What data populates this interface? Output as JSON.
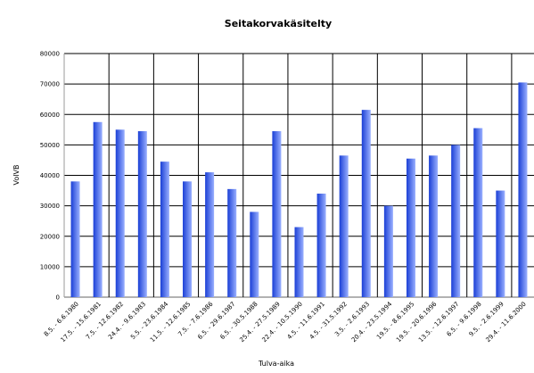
{
  "chart_data": {
    "type": "bar",
    "title": "Seitakorvakäsitelty",
    "xlabel": "Tulva-aika",
    "ylabel": "VolVB",
    "ylim": [
      0,
      80000
    ],
    "yticks": [
      0,
      10000,
      20000,
      30000,
      40000,
      50000,
      60000,
      70000,
      80000
    ],
    "grid": true,
    "categories": [
      "8.5. - 6.6.1980",
      "17.5. - 15.6.1981",
      "7.5. - 12.6.1982",
      "24.4. - 9.6.1983",
      "5.5. - 23.6.1984",
      "11.5. - 12.6.1985",
      "7.5. - 7.6.1986",
      "6.5. - 29.6.1987",
      "6.5. - 30.5.1988",
      "25.4. - 27.5.1989",
      "22.4. - 10.5.1990",
      "4.5. - 11.6.1991",
      "4.5. - 31.5.1992",
      "3.5. - 2.6.1993",
      "20.4. - 23.5.1994",
      "19.5. - 8.6.1995",
      "19.5. - 20.6.1996",
      "13.5. - 12.6.1997",
      "6.5. - 9.6.1998",
      "9.5. - 2.6.1999",
      "29.4. - 11.6.2000"
    ],
    "values": [
      38000,
      57500,
      55000,
      54500,
      44500,
      38000,
      41000,
      35500,
      28000,
      54500,
      23000,
      34000,
      46500,
      61500,
      30000,
      45500,
      46500,
      50000,
      55500,
      35000,
      70500
    ],
    "colors": {
      "bar_dark": "#1a3fd6",
      "bar_light": "#9ab0ff",
      "grid": "#000000",
      "frame": "#999999"
    }
  }
}
